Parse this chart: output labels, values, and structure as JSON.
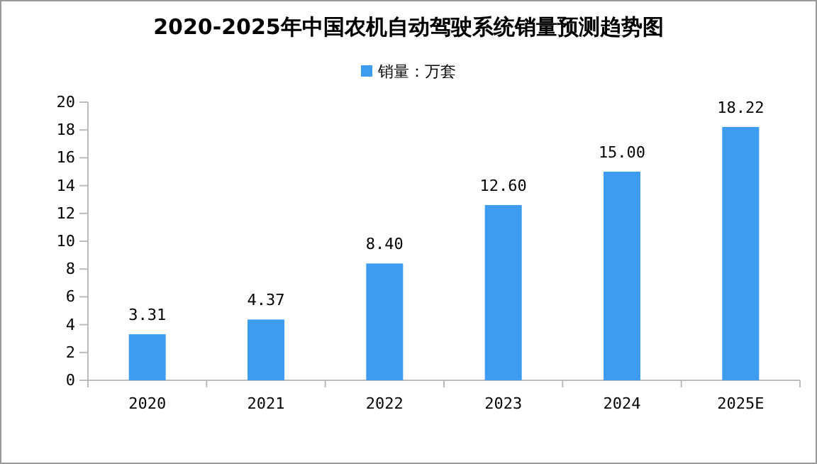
{
  "chart_data": {
    "type": "bar",
    "title": "2020-2025年中国农机自动驾驶系统销量预测趋势图",
    "categories": [
      "2020",
      "2021",
      "2022",
      "2023",
      "2024",
      "2025E"
    ],
    "series": [
      {
        "name": "销量：万套",
        "color": "#3d9bf0",
        "values": [
          3.31,
          4.37,
          8.4,
          12.6,
          15.0,
          18.22
        ]
      }
    ],
    "value_labels": [
      "3.31",
      "4.37",
      "8.40",
      "12.60",
      "15.00",
      "18.22"
    ],
    "ylim": [
      0,
      20
    ],
    "yticks": [
      0,
      2,
      4,
      6,
      8,
      10,
      12,
      14,
      16,
      18,
      20
    ],
    "grid": false,
    "legend": "top"
  }
}
